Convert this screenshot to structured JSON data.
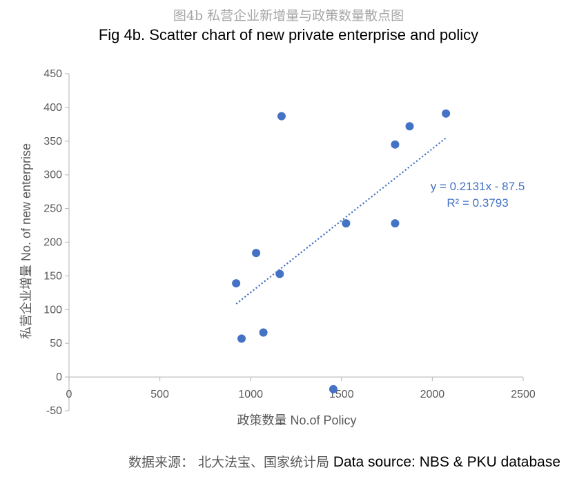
{
  "header": {
    "title_cn": "图4b 私营企业新增量与政策数量散点图",
    "title_en": "Fig 4b. Scatter chart of new private enterprise and policy"
  },
  "source": {
    "label_cn": "数据来源： 北大法宝、国家统计局",
    "label_en": "Data source: NBS & PKU database"
  },
  "chart_data": {
    "type": "scatter",
    "title": "Fig 4b. Scatter chart of new private enterprise and policy",
    "xlabel": "政策数量 No.of Policy",
    "ylabel": "私营企业增量 No. of new enterprise",
    "xlim": [
      0,
      2500
    ],
    "ylim": [
      -50,
      450
    ],
    "xticks": [
      0,
      500,
      1000,
      1500,
      2000,
      2500
    ],
    "yticks": [
      -50,
      0,
      50,
      100,
      150,
      200,
      250,
      300,
      350,
      400,
      450
    ],
    "grid": false,
    "legend": "none",
    "point_color": "#4472c4",
    "points": [
      {
        "x": 920,
        "y": 139
      },
      {
        "x": 950,
        "y": 57
      },
      {
        "x": 1030,
        "y": 184
      },
      {
        "x": 1070,
        "y": 66
      },
      {
        "x": 1160,
        "y": 153
      },
      {
        "x": 1170,
        "y": 387
      },
      {
        "x": 1455,
        "y": -18
      },
      {
        "x": 1525,
        "y": 228
      },
      {
        "x": 1795,
        "y": 345
      },
      {
        "x": 1795,
        "y": 228
      },
      {
        "x": 1875,
        "y": 372
      },
      {
        "x": 2075,
        "y": 391
      }
    ],
    "trendline": {
      "type": "linear",
      "slope": 0.2131,
      "intercept": -87.5,
      "x_range": [
        920,
        2075
      ],
      "equation": "y = 0.2131x - 87.5",
      "r_squared": "R² = 0.3793"
    }
  }
}
